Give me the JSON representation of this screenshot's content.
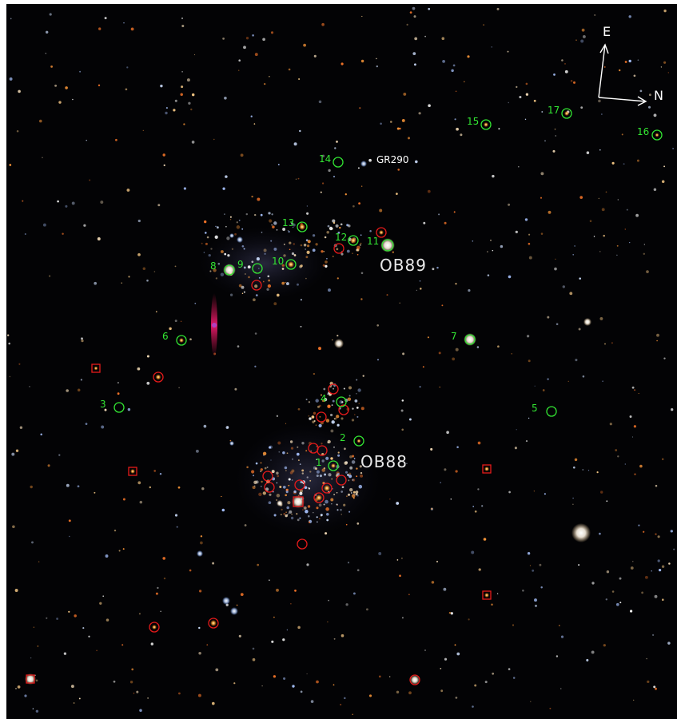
{
  "labels": {
    "cluster_north": "OB89",
    "cluster_south": "OB88",
    "star_name": "GR290",
    "compass_east": "E",
    "compass_north": "N"
  },
  "numbered_sources": [
    "1",
    "2",
    "3",
    "4",
    "5",
    "6",
    "7",
    "8",
    "9",
    "10",
    "11",
    "12",
    "13",
    "14",
    "15",
    "16",
    "17"
  ],
  "colors": {
    "background": "#030305",
    "green_marker": "#33e633",
    "red_marker": "#e61a1a",
    "label_white": "#ffffff"
  }
}
